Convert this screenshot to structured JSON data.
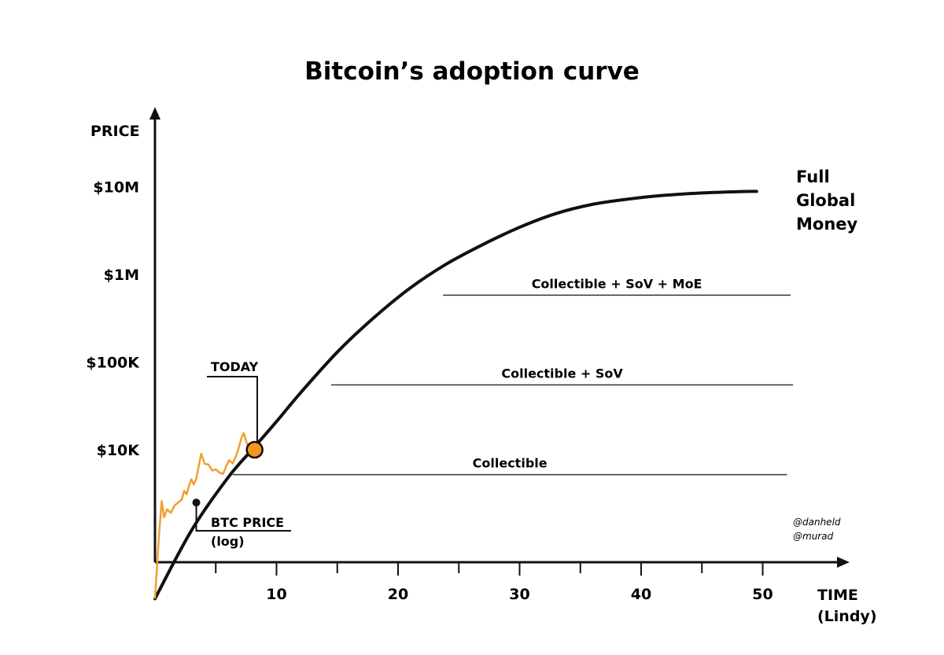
{
  "chart_data": {
    "type": "line",
    "title": "Bitcoin’s adoption curve",
    "ylabel": "PRICE",
    "xlabel": [
      "TIME",
      "(Lindy)"
    ],
    "y_scale": "log",
    "x_ticks": [
      10,
      20,
      30,
      40,
      50
    ],
    "x_minor_ticks": [
      5,
      15,
      25,
      35,
      45
    ],
    "xlim": [
      0,
      53
    ],
    "y_ticks": [
      {
        "value": 10000,
        "label": "$10K"
      },
      {
        "value": 100000,
        "label": "$100K"
      },
      {
        "value": 1000000,
        "label": "$1M"
      },
      {
        "value": 10000000,
        "label": "$10M"
      }
    ],
    "ylim": [
      200,
      80000000
    ],
    "series": [
      {
        "name": "BTC PRICE (log)",
        "color": "#F0A030",
        "points": [
          [
            0,
            200
          ],
          [
            0.3,
            900
          ],
          [
            0.55,
            2600
          ],
          [
            0.75,
            1700
          ],
          [
            1.0,
            2100
          ],
          [
            1.3,
            1900
          ],
          [
            1.6,
            2300
          ],
          [
            1.9,
            2500
          ],
          [
            2.2,
            2700
          ],
          [
            2.4,
            3400
          ],
          [
            2.6,
            3100
          ],
          [
            2.8,
            3900
          ],
          [
            3.0,
            4600
          ],
          [
            3.2,
            4000
          ],
          [
            3.4,
            4700
          ],
          [
            3.6,
            6500
          ],
          [
            3.8,
            9000
          ],
          [
            4.1,
            6900
          ],
          [
            4.4,
            6800
          ],
          [
            4.7,
            5800
          ],
          [
            5.0,
            6000
          ],
          [
            5.3,
            5500
          ],
          [
            5.6,
            5300
          ],
          [
            5.9,
            6700
          ],
          [
            6.1,
            7600
          ],
          [
            6.4,
            7000
          ],
          [
            6.7,
            8700
          ],
          [
            6.9,
            10600
          ],
          [
            7.1,
            13500
          ],
          [
            7.3,
            15500
          ],
          [
            7.6,
            11500
          ],
          [
            7.9,
            10300
          ],
          [
            8.2,
            9900
          ],
          [
            8.4,
            10200
          ]
        ]
      },
      {
        "name": "Adoption curve",
        "color": "#111111",
        "points": [
          [
            0,
            200
          ],
          [
            3,
            1200
          ],
          [
            6,
            4800
          ],
          [
            8.2,
            10800
          ],
          [
            10,
            21000
          ],
          [
            12,
            45000
          ],
          [
            15,
            130000
          ],
          [
            18,
            320000
          ],
          [
            21,
            700000
          ],
          [
            24,
            1320000
          ],
          [
            27,
            2200000
          ],
          [
            30,
            3450000
          ],
          [
            33,
            4950000
          ],
          [
            36,
            6300000
          ],
          [
            39,
            7250000
          ],
          [
            42,
            8000000
          ],
          [
            45,
            8500000
          ],
          [
            48,
            8800000
          ],
          [
            49.5,
            8850000
          ]
        ]
      }
    ],
    "reference_lines": [
      {
        "label": "Collectible",
        "y": 5200,
        "x_start": 6.4,
        "x_end": 52.0
      },
      {
        "label": "Collectible + SoV",
        "y": 55000,
        "x_start": 14.5,
        "x_end": 52.5
      },
      {
        "label": "Collectible + SoV + MoE",
        "y": 580000,
        "x_start": 23.7,
        "x_end": 52.3
      }
    ],
    "today_marker": {
      "label": "TODAY",
      "x": 8.2,
      "y": 10000,
      "color": "#F7941D"
    },
    "btc_label": {
      "line1": "BTC PRICE",
      "line2": "(log)",
      "dot_x": 3.4,
      "dot_y": 2500
    },
    "end_label": [
      "Full",
      "Global",
      "Money"
    ],
    "credits": [
      "@danheld",
      "@murad"
    ]
  }
}
